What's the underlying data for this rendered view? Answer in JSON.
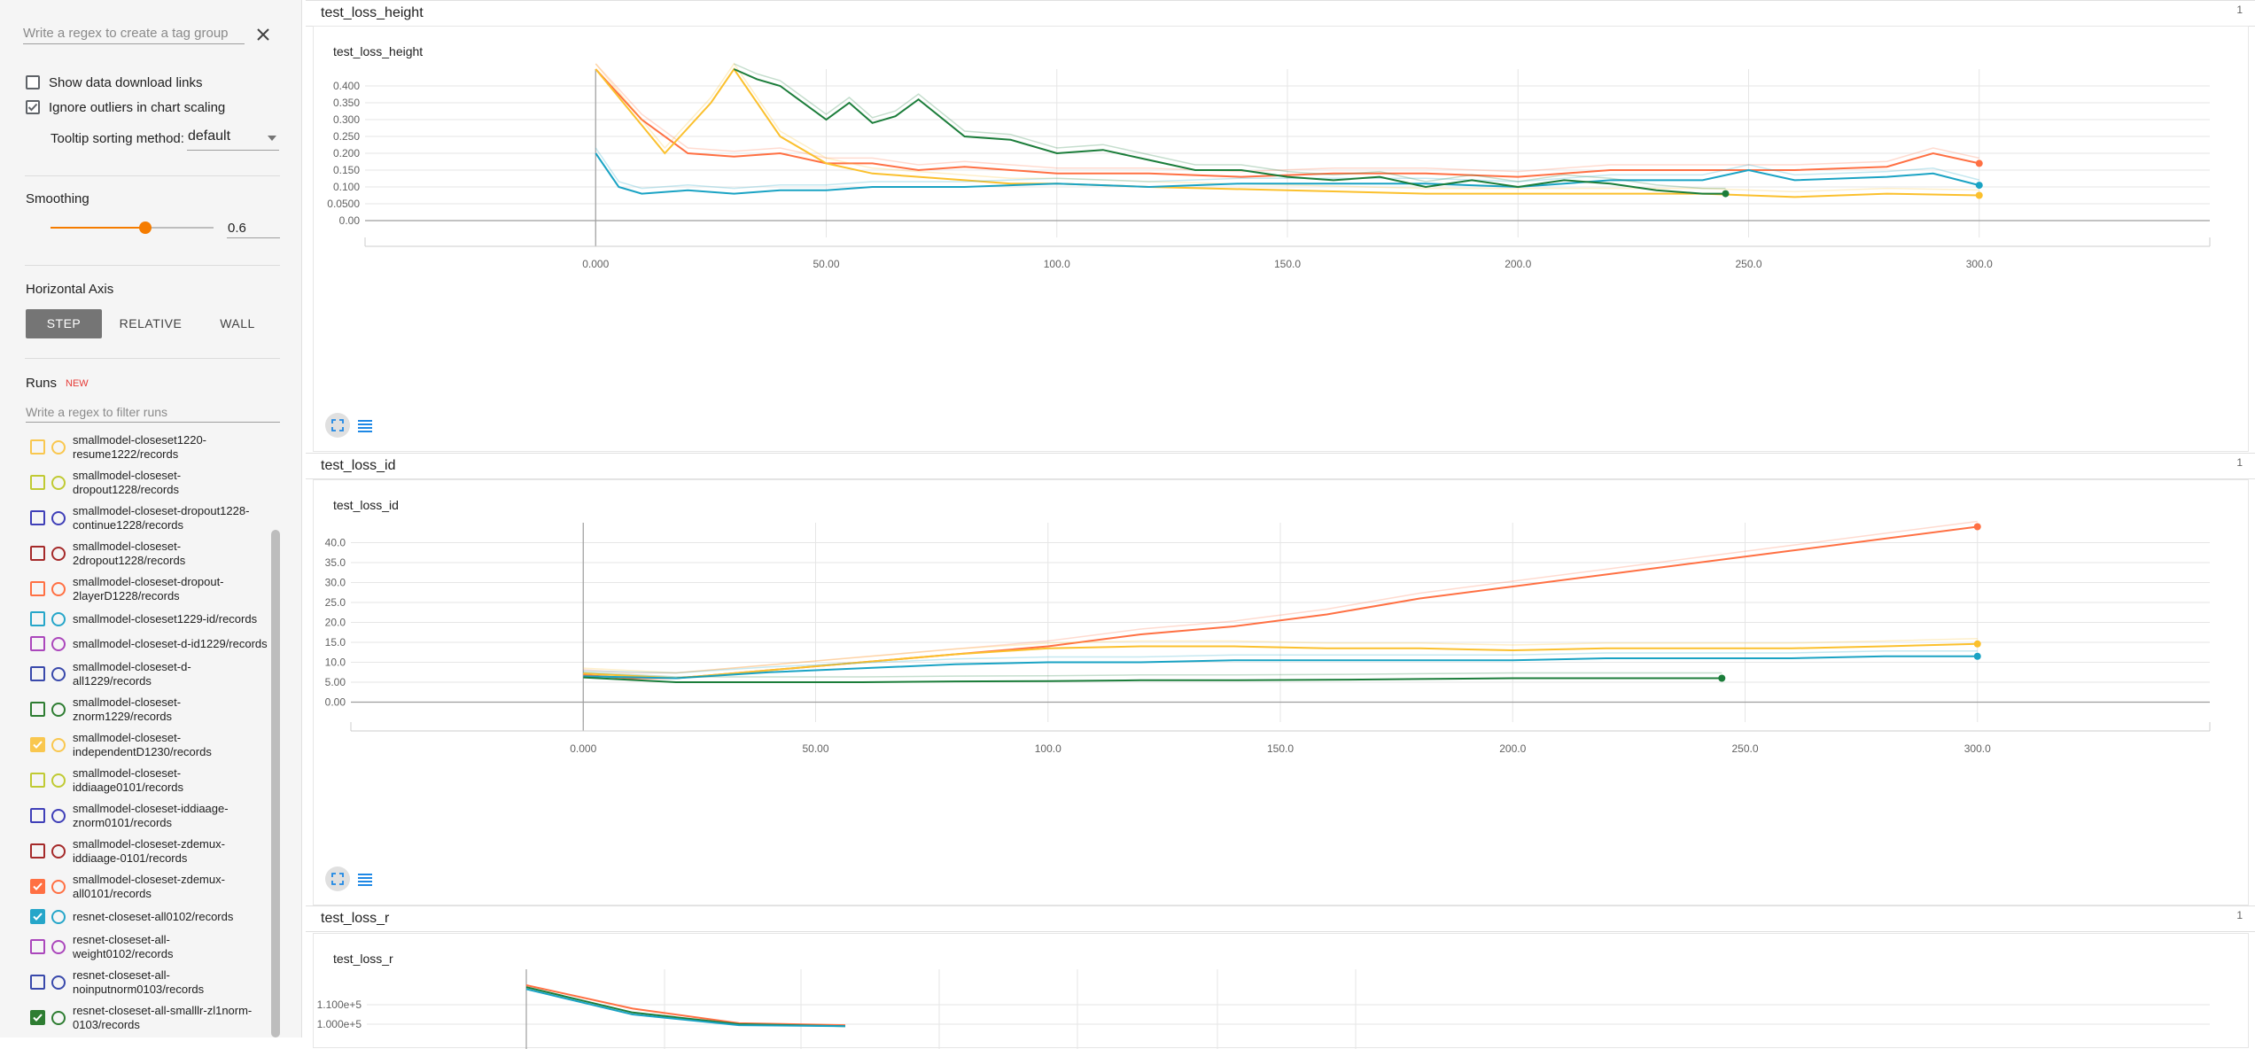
{
  "sidebar": {
    "tag_regex_placeholder": "Write a regex to create a tag group",
    "show_download_links": "Show data download links",
    "show_download_links_checked": false,
    "ignore_outliers": "Ignore outliers in chart scaling",
    "ignore_outliers_checked": true,
    "tooltip_label": "Tooltip sorting method:",
    "tooltip_value": "default",
    "smoothing_label": "Smoothing",
    "smoothing_value": "0.6",
    "smoothing_fraction": 0.6,
    "horizontal_axis_label": "Horizontal Axis",
    "axis_buttons": [
      "STEP",
      "RELATIVE",
      "WALL"
    ],
    "axis_selected": "STEP",
    "runs_label": "Runs",
    "runs_badge": "NEW",
    "runs_filter_placeholder": "Write a regex to filter runs",
    "runs": [
      {
        "lines": [
          "smallmodel-closeset1220-",
          "resume1222/records"
        ],
        "color": "#f9c74f",
        "checked": false
      },
      {
        "lines": [
          "smallmodel-closeset-",
          "dropout1228/records"
        ],
        "color": "#c0ca33",
        "checked": false
      },
      {
        "lines": [
          "smallmodel-closeset-dropout1228-",
          "continue1228/records"
        ],
        "color": "#3f3fb8",
        "checked": false
      },
      {
        "lines": [
          "smallmodel-closeset-",
          "2dropout1228/records"
        ],
        "color": "#a52a2a",
        "checked": false
      },
      {
        "lines": [
          "smallmodel-closeset-dropout-",
          "2layerD1228/records"
        ],
        "color": "#ff7043",
        "checked": false
      },
      {
        "lines": [
          "smallmodel-closeset1229-id/records"
        ],
        "color": "#26a6c9",
        "checked": false
      },
      {
        "lines": [
          "smallmodel-closeset-d-id1229/records"
        ],
        "color": "#ab47bc",
        "checked": false
      },
      {
        "lines": [
          "smallmodel-closeset-d-",
          "all1229/records"
        ],
        "color": "#3949ab",
        "checked": false
      },
      {
        "lines": [
          "smallmodel-closeset-",
          "znorm1229/records"
        ],
        "color": "#2e7d32",
        "checked": false
      },
      {
        "lines": [
          "smallmodel-closeset-",
          "independentD1230/records"
        ],
        "color": "#f9c74f",
        "checked": true
      },
      {
        "lines": [
          "smallmodel-closeset-",
          "iddiaage0101/records"
        ],
        "color": "#c0ca33",
        "checked": false
      },
      {
        "lines": [
          "smallmodel-closeset-iddiaage-",
          "znorm0101/records"
        ],
        "color": "#3f3fb8",
        "checked": false
      },
      {
        "lines": [
          "smallmodel-closeset-zdemux-",
          "iddiaage-0101/records"
        ],
        "color": "#a52a2a",
        "checked": false
      },
      {
        "lines": [
          "smallmodel-closeset-zdemux-",
          "all0101/records"
        ],
        "color": "#ff7043",
        "checked": true
      },
      {
        "lines": [
          "resnet-closeset-all0102/records"
        ],
        "color": "#26a6c9",
        "checked": true
      },
      {
        "lines": [
          "resnet-closeset-all-",
          "weight0102/records"
        ],
        "color": "#ab47bc",
        "checked": false
      },
      {
        "lines": [
          "resnet-closeset-all-",
          "noinputnorm0103/records"
        ],
        "color": "#3949ab",
        "checked": false
      },
      {
        "lines": [
          "resnet-closeset-all-smalllr-zl1norm-",
          "0103/records"
        ],
        "color": "#2e7d32",
        "checked": true
      }
    ]
  },
  "sections": [
    {
      "title": "test_loss_height",
      "count": "1"
    },
    {
      "title": "test_loss_id",
      "count": "1"
    },
    {
      "title": "test_loss_r",
      "count": "1"
    }
  ],
  "colors": {
    "orange": "#ff7043",
    "yellow": "#fbc02d",
    "cyan": "#1aa3c4",
    "green": "#1b7d3a"
  },
  "chart_data": [
    {
      "type": "line",
      "title": "test_loss_height",
      "x_ticks": [
        "0.000",
        "50.00",
        "100.0",
        "150.0",
        "200.0",
        "250.0",
        "300.0"
      ],
      "y_ticks": [
        "0.00",
        "0.0500",
        "0.100",
        "0.150",
        "0.200",
        "0.250",
        "0.300",
        "0.350",
        "0.400"
      ],
      "xlim": [
        -50,
        350
      ],
      "ylim": [
        -0.05,
        0.45
      ],
      "series": [
        {
          "color": "orange",
          "x": [
            0,
            10,
            20,
            30,
            40,
            50,
            60,
            70,
            80,
            90,
            100,
            120,
            140,
            160,
            180,
            200,
            220,
            240,
            260,
            280,
            290,
            300
          ],
          "y": [
            0.45,
            0.3,
            0.2,
            0.19,
            0.2,
            0.17,
            0.17,
            0.15,
            0.16,
            0.15,
            0.14,
            0.14,
            0.13,
            0.14,
            0.14,
            0.13,
            0.15,
            0.15,
            0.15,
            0.16,
            0.2,
            0.17
          ]
        },
        {
          "color": "yellow",
          "x": [
            0,
            15,
            25,
            30,
            40,
            50,
            60,
            70,
            80,
            90,
            100,
            120,
            150,
            180,
            200,
            220,
            240,
            260,
            280,
            300
          ],
          "y": [
            0.45,
            0.2,
            0.35,
            0.45,
            0.25,
            0.17,
            0.14,
            0.13,
            0.12,
            0.11,
            0.11,
            0.1,
            0.09,
            0.08,
            0.08,
            0.08,
            0.08,
            0.07,
            0.08,
            0.075
          ]
        },
        {
          "color": "cyan",
          "x": [
            0,
            5,
            10,
            20,
            30,
            40,
            50,
            60,
            80,
            100,
            120,
            140,
            160,
            180,
            200,
            220,
            240,
            250,
            260,
            280,
            290,
            300
          ],
          "y": [
            0.2,
            0.1,
            0.08,
            0.09,
            0.08,
            0.09,
            0.09,
            0.1,
            0.1,
            0.11,
            0.1,
            0.11,
            0.11,
            0.11,
            0.1,
            0.12,
            0.12,
            0.15,
            0.12,
            0.13,
            0.14,
            0.105
          ]
        },
        {
          "color": "green",
          "x": [
            30,
            35,
            40,
            50,
            55,
            60,
            65,
            70,
            80,
            90,
            100,
            110,
            120,
            130,
            140,
            150,
            160,
            170,
            180,
            190,
            200,
            210,
            220,
            230,
            240,
            245
          ],
          "y": [
            0.45,
            0.42,
            0.4,
            0.3,
            0.35,
            0.29,
            0.31,
            0.36,
            0.25,
            0.24,
            0.2,
            0.21,
            0.18,
            0.15,
            0.15,
            0.13,
            0.12,
            0.13,
            0.1,
            0.12,
            0.1,
            0.12,
            0.11,
            0.09,
            0.08,
            0.08
          ]
        }
      ]
    },
    {
      "type": "line",
      "title": "test_loss_id",
      "x_ticks": [
        "0.000",
        "50.00",
        "100.0",
        "150.0",
        "200.0",
        "250.0",
        "300.0"
      ],
      "y_ticks": [
        "0.00",
        "5.00",
        "10.0",
        "15.0",
        "20.0",
        "25.0",
        "30.0",
        "35.0",
        "40.0"
      ],
      "xlim": [
        -50,
        350
      ],
      "ylim": [
        -5,
        45
      ],
      "series": [
        {
          "color": "orange",
          "x": [
            0,
            10,
            20,
            40,
            60,
            80,
            100,
            120,
            140,
            160,
            180,
            200,
            220,
            240,
            260,
            280,
            300
          ],
          "y": [
            6.8,
            6,
            6,
            8,
            10,
            12,
            14,
            17,
            19,
            22,
            26,
            29,
            32,
            35,
            38,
            41,
            44
          ]
        },
        {
          "color": "yellow",
          "x": [
            0,
            20,
            40,
            60,
            80,
            100,
            120,
            140,
            160,
            180,
            200,
            220,
            240,
            260,
            280,
            300
          ],
          "y": [
            7.2,
            6,
            8,
            10,
            12,
            13.5,
            14,
            14,
            13.5,
            13.5,
            13,
            13.5,
            13.5,
            13.5,
            14,
            14.6
          ]
        },
        {
          "color": "cyan",
          "x": [
            0,
            20,
            40,
            60,
            80,
            100,
            120,
            140,
            160,
            180,
            200,
            220,
            240,
            260,
            280,
            300
          ],
          "y": [
            6.5,
            6,
            7.5,
            8.5,
            9.5,
            10,
            10,
            10.5,
            10.5,
            10.5,
            10.5,
            11,
            11,
            11,
            11.5,
            11.5
          ]
        },
        {
          "color": "green",
          "x": [
            0,
            20,
            40,
            60,
            80,
            100,
            120,
            140,
            160,
            180,
            200,
            220,
            240,
            245
          ],
          "y": [
            6.2,
            5,
            5,
            5,
            5.2,
            5.3,
            5.5,
            5.5,
            5.6,
            5.8,
            6,
            6,
            6,
            6
          ]
        }
      ]
    },
    {
      "type": "line",
      "title": "test_loss_r",
      "y_ticks": [
        "1.000e+5",
        "1.100e+5"
      ],
      "series": [
        {
          "color": "orange",
          "x": [
            0,
            10,
            20,
            30
          ],
          "y": [
            120000,
            108000,
            100500,
            99500
          ]
        },
        {
          "color": "green",
          "x": [
            0,
            10,
            20,
            30
          ],
          "y": [
            119000,
            106000,
            100000,
            99000
          ]
        },
        {
          "color": "cyan",
          "x": [
            0,
            10,
            20,
            30
          ],
          "y": [
            118000,
            105000,
            99500,
            99000
          ]
        }
      ]
    }
  ]
}
